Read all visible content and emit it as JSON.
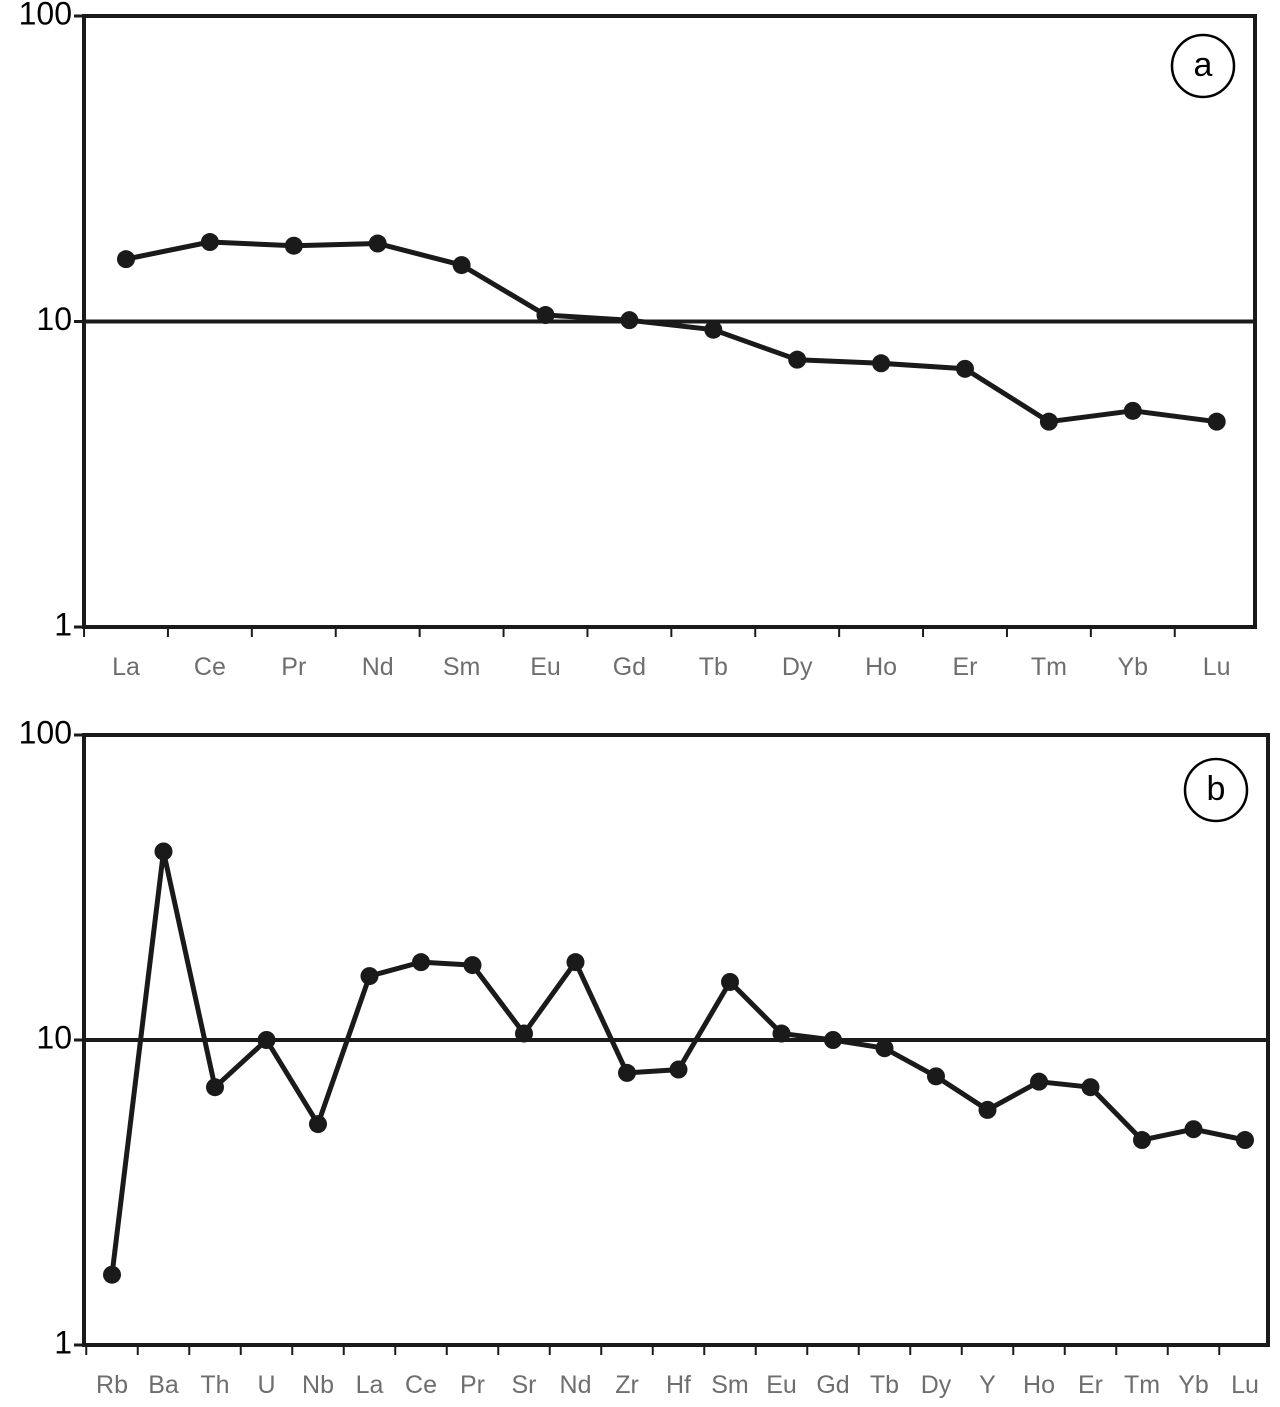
{
  "chart_data": [
    {
      "type": "line",
      "panel_label": "a",
      "y_scale": "log",
      "ylim": [
        1,
        100
      ],
      "y_ticks": [
        "1",
        "10",
        "100"
      ],
      "reference_line": 10,
      "categories": [
        "La",
        "Ce",
        "Pr",
        "Nd",
        "Sm",
        "Eu",
        "Gd",
        "Tb",
        "Dy",
        "Ho",
        "Er",
        "Tm",
        "Yb",
        "Lu"
      ],
      "series": [
        {
          "values": [
            16,
            18.2,
            17.7,
            18,
            15.3,
            10.5,
            10.1,
            9.4,
            7.5,
            7.3,
            7.0,
            4.7,
            5.1,
            4.7
          ]
        }
      ],
      "grid": false,
      "colors": {
        "line": "#1a1a1a",
        "axis": "#1a1a1a",
        "tick_label": "#6e6e6e"
      }
    },
    {
      "type": "line",
      "panel_label": "b",
      "y_scale": "log",
      "ylim": [
        1,
        100
      ],
      "y_ticks": [
        "1",
        "10",
        "100"
      ],
      "reference_line": 10,
      "categories": [
        "Rb",
        "Ba",
        "Th",
        "U",
        "Nb",
        "La",
        "Ce",
        "Pr",
        "Sr",
        "Nd",
        "Zr",
        "Hf",
        "Sm",
        "Eu",
        "Gd",
        "Tb",
        "Dy",
        "Y",
        "Ho",
        "Er",
        "Tm",
        "Yb",
        "Lu"
      ],
      "series": [
        {
          "values": [
            1.7,
            41.5,
            7.0,
            10.0,
            5.3,
            16.2,
            18.0,
            17.6,
            10.5,
            18.0,
            7.8,
            8.0,
            15.5,
            10.5,
            10.0,
            9.4,
            7.6,
            5.9,
            7.3,
            7.0,
            4.7,
            5.1,
            4.7
          ]
        }
      ],
      "grid": false,
      "colors": {
        "line": "#1a1a1a",
        "axis": "#1a1a1a",
        "tick_label": "#6e6e6e"
      }
    }
  ]
}
